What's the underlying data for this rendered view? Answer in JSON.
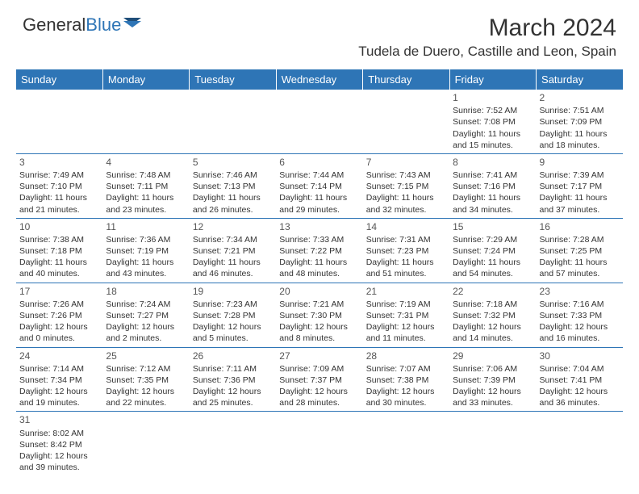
{
  "logo": {
    "text1": "General",
    "text2": "Blue"
  },
  "title": "March 2024",
  "subtitle": "Tudela de Duero, Castille and Leon, Spain",
  "colors": {
    "header_bg": "#2e75b6",
    "header_text": "#ffffff",
    "border": "#2e75b6",
    "text": "#333333",
    "logo_accent": "#2e75b6"
  },
  "days": [
    "Sunday",
    "Monday",
    "Tuesday",
    "Wednesday",
    "Thursday",
    "Friday",
    "Saturday"
  ],
  "weeks": [
    [
      {
        "empty": true
      },
      {
        "empty": true
      },
      {
        "empty": true
      },
      {
        "empty": true
      },
      {
        "empty": true
      },
      {
        "num": "1",
        "sr": "Sunrise: 7:52 AM",
        "ss": "Sunset: 7:08 PM",
        "dl": "Daylight: 11 hours and 15 minutes."
      },
      {
        "num": "2",
        "sr": "Sunrise: 7:51 AM",
        "ss": "Sunset: 7:09 PM",
        "dl": "Daylight: 11 hours and 18 minutes."
      }
    ],
    [
      {
        "num": "3",
        "sr": "Sunrise: 7:49 AM",
        "ss": "Sunset: 7:10 PM",
        "dl": "Daylight: 11 hours and 21 minutes."
      },
      {
        "num": "4",
        "sr": "Sunrise: 7:48 AM",
        "ss": "Sunset: 7:11 PM",
        "dl": "Daylight: 11 hours and 23 minutes."
      },
      {
        "num": "5",
        "sr": "Sunrise: 7:46 AM",
        "ss": "Sunset: 7:13 PM",
        "dl": "Daylight: 11 hours and 26 minutes."
      },
      {
        "num": "6",
        "sr": "Sunrise: 7:44 AM",
        "ss": "Sunset: 7:14 PM",
        "dl": "Daylight: 11 hours and 29 minutes."
      },
      {
        "num": "7",
        "sr": "Sunrise: 7:43 AM",
        "ss": "Sunset: 7:15 PM",
        "dl": "Daylight: 11 hours and 32 minutes."
      },
      {
        "num": "8",
        "sr": "Sunrise: 7:41 AM",
        "ss": "Sunset: 7:16 PM",
        "dl": "Daylight: 11 hours and 34 minutes."
      },
      {
        "num": "9",
        "sr": "Sunrise: 7:39 AM",
        "ss": "Sunset: 7:17 PM",
        "dl": "Daylight: 11 hours and 37 minutes."
      }
    ],
    [
      {
        "num": "10",
        "sr": "Sunrise: 7:38 AM",
        "ss": "Sunset: 7:18 PM",
        "dl": "Daylight: 11 hours and 40 minutes."
      },
      {
        "num": "11",
        "sr": "Sunrise: 7:36 AM",
        "ss": "Sunset: 7:19 PM",
        "dl": "Daylight: 11 hours and 43 minutes."
      },
      {
        "num": "12",
        "sr": "Sunrise: 7:34 AM",
        "ss": "Sunset: 7:21 PM",
        "dl": "Daylight: 11 hours and 46 minutes."
      },
      {
        "num": "13",
        "sr": "Sunrise: 7:33 AM",
        "ss": "Sunset: 7:22 PM",
        "dl": "Daylight: 11 hours and 48 minutes."
      },
      {
        "num": "14",
        "sr": "Sunrise: 7:31 AM",
        "ss": "Sunset: 7:23 PM",
        "dl": "Daylight: 11 hours and 51 minutes."
      },
      {
        "num": "15",
        "sr": "Sunrise: 7:29 AM",
        "ss": "Sunset: 7:24 PM",
        "dl": "Daylight: 11 hours and 54 minutes."
      },
      {
        "num": "16",
        "sr": "Sunrise: 7:28 AM",
        "ss": "Sunset: 7:25 PM",
        "dl": "Daylight: 11 hours and 57 minutes."
      }
    ],
    [
      {
        "num": "17",
        "sr": "Sunrise: 7:26 AM",
        "ss": "Sunset: 7:26 PM",
        "dl": "Daylight: 12 hours and 0 minutes."
      },
      {
        "num": "18",
        "sr": "Sunrise: 7:24 AM",
        "ss": "Sunset: 7:27 PM",
        "dl": "Daylight: 12 hours and 2 minutes."
      },
      {
        "num": "19",
        "sr": "Sunrise: 7:23 AM",
        "ss": "Sunset: 7:28 PM",
        "dl": "Daylight: 12 hours and 5 minutes."
      },
      {
        "num": "20",
        "sr": "Sunrise: 7:21 AM",
        "ss": "Sunset: 7:30 PM",
        "dl": "Daylight: 12 hours and 8 minutes."
      },
      {
        "num": "21",
        "sr": "Sunrise: 7:19 AM",
        "ss": "Sunset: 7:31 PM",
        "dl": "Daylight: 12 hours and 11 minutes."
      },
      {
        "num": "22",
        "sr": "Sunrise: 7:18 AM",
        "ss": "Sunset: 7:32 PM",
        "dl": "Daylight: 12 hours and 14 minutes."
      },
      {
        "num": "23",
        "sr": "Sunrise: 7:16 AM",
        "ss": "Sunset: 7:33 PM",
        "dl": "Daylight: 12 hours and 16 minutes."
      }
    ],
    [
      {
        "num": "24",
        "sr": "Sunrise: 7:14 AM",
        "ss": "Sunset: 7:34 PM",
        "dl": "Daylight: 12 hours and 19 minutes."
      },
      {
        "num": "25",
        "sr": "Sunrise: 7:12 AM",
        "ss": "Sunset: 7:35 PM",
        "dl": "Daylight: 12 hours and 22 minutes."
      },
      {
        "num": "26",
        "sr": "Sunrise: 7:11 AM",
        "ss": "Sunset: 7:36 PM",
        "dl": "Daylight: 12 hours and 25 minutes."
      },
      {
        "num": "27",
        "sr": "Sunrise: 7:09 AM",
        "ss": "Sunset: 7:37 PM",
        "dl": "Daylight: 12 hours and 28 minutes."
      },
      {
        "num": "28",
        "sr": "Sunrise: 7:07 AM",
        "ss": "Sunset: 7:38 PM",
        "dl": "Daylight: 12 hours and 30 minutes."
      },
      {
        "num": "29",
        "sr": "Sunrise: 7:06 AM",
        "ss": "Sunset: 7:39 PM",
        "dl": "Daylight: 12 hours and 33 minutes."
      },
      {
        "num": "30",
        "sr": "Sunrise: 7:04 AM",
        "ss": "Sunset: 7:41 PM",
        "dl": "Daylight: 12 hours and 36 minutes."
      }
    ],
    [
      {
        "num": "31",
        "sr": "Sunrise: 8:02 AM",
        "ss": "Sunset: 8:42 PM",
        "dl": "Daylight: 12 hours and 39 minutes."
      },
      {
        "empty": true
      },
      {
        "empty": true
      },
      {
        "empty": true
      },
      {
        "empty": true
      },
      {
        "empty": true
      },
      {
        "empty": true
      }
    ]
  ]
}
